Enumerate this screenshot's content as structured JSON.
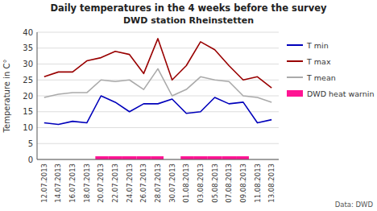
{
  "chart_data": {
    "type": "line",
    "title": "Daily temperatures in the 4 weeks before the survey",
    "subtitle": "DWD station Rheinstetten",
    "y_label": "Temperature in C°",
    "annotations": [
      "Data: DWD"
    ],
    "categories": [
      "12.07.2013",
      "14.07.2013",
      "16.07.2013",
      "18.07.2013",
      "20.07.2013",
      "22.07.2013",
      "24.07.2013",
      "26.07.2013",
      "28.07.2013",
      "30.07.2013",
      "01.08.2013",
      "03.08.2013",
      "05.08.2013",
      "07.08.2013",
      "09.08.2013",
      "11.08.2013",
      "13.08.2013"
    ],
    "series": [
      {
        "name": "T min",
        "type": "line",
        "color": "#0000bb",
        "values": [
          11.5,
          11.0,
          12.0,
          11.5,
          20.0,
          18.0,
          15.0,
          17.5,
          17.5,
          19.0,
          14.5,
          15.0,
          19.5,
          17.5,
          18.0,
          11.5,
          12.5
        ]
      },
      {
        "name": "T max",
        "type": "line",
        "color": "#990000",
        "values": [
          26.0,
          27.5,
          27.5,
          31.0,
          32.0,
          34.0,
          33.0,
          27.0,
          38.0,
          25.0,
          29.5,
          37.0,
          34.5,
          29.5,
          25.0,
          26.0,
          22.5
        ]
      },
      {
        "name": "T mean",
        "type": "line",
        "color": "#aaaaaa",
        "values": [
          19.5,
          20.5,
          21.0,
          21.0,
          25.0,
          24.5,
          25.0,
          22.0,
          28.5,
          20.0,
          22.0,
          26.0,
          25.0,
          24.5,
          20.0,
          19.5,
          18.0
        ]
      },
      {
        "name": "DWD heat warnin",
        "type": "bar",
        "color": "#ff1493",
        "values": [
          null,
          null,
          null,
          null,
          1,
          1,
          1,
          1,
          1,
          null,
          1,
          1,
          1,
          1,
          1,
          null,
          null
        ]
      }
    ],
    "ylim": [
      0,
      40
    ],
    "yticks": [
      0,
      5,
      10,
      15,
      20,
      25,
      30,
      35,
      40
    ],
    "grid": true,
    "legend": "right"
  }
}
